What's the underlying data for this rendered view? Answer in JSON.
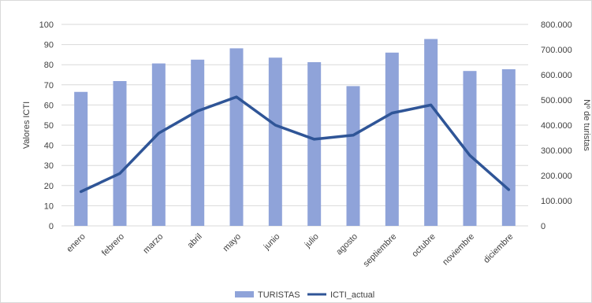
{
  "chart_data": {
    "type": "bar+line",
    "categories": [
      "enero",
      "febrero",
      "marzo",
      "abril",
      "mayo",
      "junio",
      "julio",
      "agosto",
      "septiembre",
      "octubre",
      "noviembre",
      "diciembre"
    ],
    "series": [
      {
        "name": "TURISTAS",
        "type": "bar",
        "axis": "right",
        "color": "#8fa3d9",
        "values": [
          532000,
          575000,
          645000,
          660000,
          705000,
          668000,
          650000,
          555000,
          688000,
          742000,
          615000,
          622000
        ]
      },
      {
        "name": "ICTI_actual",
        "type": "line",
        "axis": "left",
        "color": "#2f5597",
        "values": [
          17,
          26,
          46,
          57,
          64,
          50,
          43,
          45,
          56,
          60,
          35,
          18
        ]
      }
    ],
    "ylabel_left": "Valores ICTI",
    "ylabel_right": "Nº de turistas",
    "ylim_left": [
      0,
      100
    ],
    "ylim_right": [
      0,
      800000
    ],
    "yticks_left": [
      "0",
      "10",
      "20",
      "30",
      "40",
      "50",
      "60",
      "70",
      "80",
      "90",
      "100"
    ],
    "yticks_right": [
      "0",
      "100.000",
      "200.000",
      "300.000",
      "400.000",
      "500.000",
      "600.000",
      "700.000",
      "800.000"
    ],
    "grid": true,
    "legend_position": "bottom"
  }
}
